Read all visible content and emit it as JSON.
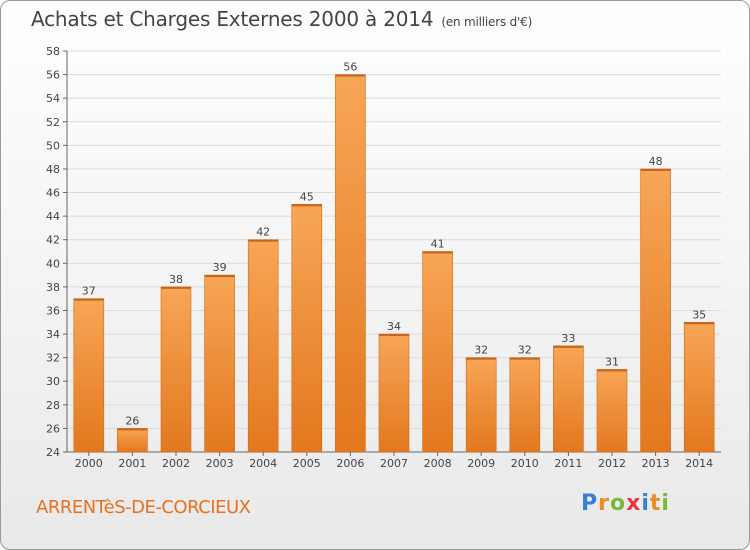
{
  "title": "Achats et Charges Externes 2000 à 2014",
  "subtitle": "(en milliers d'€)",
  "town": "ARRENTèS-DE-CORCIEUX",
  "logo": {
    "letters": [
      "P",
      "r",
      "o",
      "x",
      "i",
      "t",
      "i"
    ],
    "colors": [
      "#3a7fd0",
      "#f08a24",
      "#7ab83a",
      "#e23b3b",
      "#3a7fd0",
      "#f08a24",
      "#7ab83a"
    ]
  },
  "chart_data": {
    "type": "bar",
    "categories": [
      "2000",
      "2001",
      "2002",
      "2003",
      "2004",
      "2005",
      "2006",
      "2007",
      "2008",
      "2009",
      "2010",
      "2011",
      "2012",
      "2013",
      "2014"
    ],
    "values": [
      37,
      26,
      38,
      39,
      42,
      45,
      56,
      34,
      41,
      32,
      32,
      33,
      31,
      48,
      35
    ],
    "ylim": [
      24,
      58
    ],
    "yticks": [
      24,
      26,
      28,
      30,
      32,
      34,
      36,
      38,
      40,
      42,
      44,
      46,
      48,
      50,
      52,
      54,
      56,
      58
    ],
    "grid": true,
    "bar_color": "#f0923a"
  }
}
